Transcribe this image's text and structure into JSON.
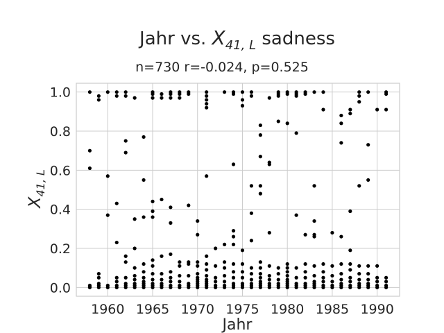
{
  "chart_data": {
    "type": "scatter",
    "title_prefix": "Jahr vs. ",
    "title_var": "X",
    "title_sub": "41, L",
    "title_suffix": " sadness",
    "subtitle": "n=730 r=-0.024, p=0.525",
    "xlabel": "Jahr",
    "ylabel_var": "X",
    "ylabel_sub": "41, L",
    "xlim": [
      1956.5,
      1992.5
    ],
    "ylim": [
      -0.045,
      1.045
    ],
    "xticks": [
      1960,
      1965,
      1970,
      1975,
      1980,
      1985,
      1990
    ],
    "yticks": [
      0.0,
      0.2,
      0.4,
      0.6,
      0.8,
      1.0
    ],
    "ytick_labels": [
      "0.0",
      "0.2",
      "0.4",
      "0.6",
      "0.8",
      "1.0"
    ],
    "grid": true,
    "marker_color": "#000000",
    "points": [
      [
        1958,
        1.0
      ],
      [
        1958,
        0.7
      ],
      [
        1958,
        0.61
      ],
      [
        1958,
        0.01
      ],
      [
        1958,
        0.005
      ],
      [
        1958,
        0.0
      ],
      [
        1959,
        0.98
      ],
      [
        1959,
        0.96
      ],
      [
        1959,
        0.07
      ],
      [
        1959,
        0.05
      ],
      [
        1959,
        0.02
      ],
      [
        1959,
        0.01
      ],
      [
        1959,
        0.0
      ],
      [
        1960,
        1.0
      ],
      [
        1960,
        0.57
      ],
      [
        1960,
        0.37
      ],
      [
        1960,
        0.01
      ],
      [
        1960,
        0.0
      ],
      [
        1961,
        1.0
      ],
      [
        1961,
        0.98
      ],
      [
        1961,
        0.43
      ],
      [
        1961,
        0.23
      ],
      [
        1961,
        0.05
      ],
      [
        1961,
        0.03
      ],
      [
        1961,
        0.01
      ],
      [
        1961,
        0.0
      ],
      [
        1962,
        1.0
      ],
      [
        1962,
        0.98
      ],
      [
        1962,
        0.75
      ],
      [
        1962,
        0.69
      ],
      [
        1962,
        0.16
      ],
      [
        1962,
        0.13
      ],
      [
        1962,
        0.05
      ],
      [
        1962,
        0.02
      ],
      [
        1962,
        0.01
      ],
      [
        1962,
        0.0
      ],
      [
        1963,
        0.97
      ],
      [
        1963,
        0.35
      ],
      [
        1963,
        0.2
      ],
      [
        1963,
        0.1
      ],
      [
        1963,
        0.06
      ],
      [
        1963,
        0.04
      ],
      [
        1963,
        0.02
      ],
      [
        1963,
        0.01
      ],
      [
        1963,
        0.0
      ],
      [
        1964,
        0.77
      ],
      [
        1964,
        0.55
      ],
      [
        1964,
        0.36
      ],
      [
        1964,
        0.12
      ],
      [
        1964,
        0.08
      ],
      [
        1964,
        0.05
      ],
      [
        1964,
        0.03
      ],
      [
        1964,
        0.02
      ],
      [
        1964,
        0.01
      ],
      [
        1964,
        0.0
      ],
      [
        1965,
        1.0
      ],
      [
        1965,
        0.99
      ],
      [
        1965,
        0.97
      ],
      [
        1965,
        0.44
      ],
      [
        1965,
        0.39
      ],
      [
        1965,
        0.36
      ],
      [
        1965,
        0.14
      ],
      [
        1965,
        0.11
      ],
      [
        1965,
        0.07
      ],
      [
        1965,
        0.04
      ],
      [
        1965,
        0.02
      ],
      [
        1965,
        0.01
      ],
      [
        1965,
        0.0
      ],
      [
        1966,
        0.99
      ],
      [
        1966,
        0.97
      ],
      [
        1966,
        0.45
      ],
      [
        1966,
        0.16
      ],
      [
        1966,
        0.07
      ],
      [
        1966,
        0.04
      ],
      [
        1966,
        0.02
      ],
      [
        1966,
        0.01
      ],
      [
        1966,
        0.0
      ],
      [
        1967,
        1.0
      ],
      [
        1967,
        0.99
      ],
      [
        1967,
        0.97
      ],
      [
        1967,
        0.41
      ],
      [
        1967,
        0.33
      ],
      [
        1967,
        0.17
      ],
      [
        1967,
        0.08
      ],
      [
        1967,
        0.05
      ],
      [
        1967,
        0.03
      ],
      [
        1967,
        0.01
      ],
      [
        1967,
        0.0
      ],
      [
        1968,
        1.0
      ],
      [
        1968,
        0.99
      ],
      [
        1968,
        0.97
      ],
      [
        1968,
        0.13
      ],
      [
        1968,
        0.11
      ],
      [
        1968,
        0.06
      ],
      [
        1968,
        0.03
      ],
      [
        1968,
        0.01
      ],
      [
        1968,
        0.0
      ],
      [
        1969,
        1.0
      ],
      [
        1969,
        0.99
      ],
      [
        1969,
        0.42
      ],
      [
        1969,
        0.13
      ],
      [
        1969,
        0.12
      ],
      [
        1969,
        0.06
      ],
      [
        1969,
        0.02
      ],
      [
        1969,
        0.01
      ],
      [
        1969,
        0.0
      ],
      [
        1970,
        0.34
      ],
      [
        1970,
        0.27
      ],
      [
        1970,
        0.13
      ],
      [
        1970,
        0.11
      ],
      [
        1970,
        0.07
      ],
      [
        1970,
        0.05
      ],
      [
        1970,
        0.04
      ],
      [
        1970,
        0.03
      ],
      [
        1970,
        0.02
      ],
      [
        1970,
        0.01
      ],
      [
        1970,
        0.0
      ],
      [
        1971,
        1.0
      ],
      [
        1971,
        0.98
      ],
      [
        1971,
        0.96
      ],
      [
        1971,
        0.94
      ],
      [
        1971,
        0.92
      ],
      [
        1971,
        0.57
      ],
      [
        1971,
        0.16
      ],
      [
        1971,
        0.12
      ],
      [
        1971,
        0.09
      ],
      [
        1971,
        0.06
      ],
      [
        1971,
        0.04
      ],
      [
        1971,
        0.03
      ],
      [
        1971,
        0.02
      ],
      [
        1971,
        0.01
      ],
      [
        1971,
        0.0
      ],
      [
        1972,
        0.2
      ],
      [
        1972,
        0.11
      ],
      [
        1972,
        0.05
      ],
      [
        1972,
        0.03
      ],
      [
        1972,
        0.01
      ],
      [
        1972,
        0.0
      ],
      [
        1973,
        1.0
      ],
      [
        1973,
        0.22
      ],
      [
        1973,
        0.13
      ],
      [
        1973,
        0.1
      ],
      [
        1973,
        0.06
      ],
      [
        1973,
        0.03
      ],
      [
        1973,
        0.01
      ],
      [
        1973,
        0.0
      ],
      [
        1974,
        1.0
      ],
      [
        1974,
        0.99
      ],
      [
        1974,
        0.63
      ],
      [
        1974,
        0.29
      ],
      [
        1974,
        0.26
      ],
      [
        1974,
        0.22
      ],
      [
        1974,
        0.12
      ],
      [
        1974,
        0.08
      ],
      [
        1974,
        0.05
      ],
      [
        1974,
        0.02
      ],
      [
        1974,
        0.01
      ],
      [
        1974,
        0.0
      ],
      [
        1975,
        1.0
      ],
      [
        1975,
        0.96
      ],
      [
        1975,
        0.93
      ],
      [
        1975,
        0.19
      ],
      [
        1975,
        0.12
      ],
      [
        1975,
        0.08
      ],
      [
        1975,
        0.05
      ],
      [
        1975,
        0.02
      ],
      [
        1975,
        0.01
      ],
      [
        1975,
        0.0
      ],
      [
        1976,
        1.0
      ],
      [
        1976,
        0.98
      ],
      [
        1976,
        0.52
      ],
      [
        1976,
        0.38
      ],
      [
        1976,
        0.24
      ],
      [
        1976,
        0.1
      ],
      [
        1976,
        0.07
      ],
      [
        1976,
        0.04
      ],
      [
        1976,
        0.02
      ],
      [
        1976,
        0.01
      ],
      [
        1976,
        0.0
      ],
      [
        1977,
        0.83
      ],
      [
        1977,
        0.78
      ],
      [
        1977,
        0.67
      ],
      [
        1977,
        0.52
      ],
      [
        1977,
        0.48
      ],
      [
        1977,
        0.13
      ],
      [
        1977,
        0.1
      ],
      [
        1977,
        0.07
      ],
      [
        1977,
        0.05
      ],
      [
        1977,
        0.03
      ],
      [
        1977,
        0.02
      ],
      [
        1977,
        0.01
      ],
      [
        1977,
        0.0
      ],
      [
        1978,
        0.97
      ],
      [
        1978,
        0.64
      ],
      [
        1978,
        0.63
      ],
      [
        1978,
        0.28
      ],
      [
        1978,
        0.11
      ],
      [
        1978,
        0.06
      ],
      [
        1978,
        0.04
      ],
      [
        1978,
        0.02
      ],
      [
        1978,
        0.01
      ],
      [
        1978,
        0.0
      ],
      [
        1979,
        1.0
      ],
      [
        1979,
        0.99
      ],
      [
        1979,
        0.98
      ],
      [
        1979,
        0.85
      ],
      [
        1979,
        0.1
      ],
      [
        1979,
        0.07
      ],
      [
        1979,
        0.04
      ],
      [
        1979,
        0.02
      ],
      [
        1979,
        0.01
      ],
      [
        1979,
        0.0
      ],
      [
        1980,
        1.0
      ],
      [
        1980,
        0.99
      ],
      [
        1980,
        0.84
      ],
      [
        1980,
        0.12
      ],
      [
        1980,
        0.1
      ],
      [
        1980,
        0.08
      ],
      [
        1980,
        0.06
      ],
      [
        1980,
        0.04
      ],
      [
        1980,
        0.03
      ],
      [
        1980,
        0.02
      ],
      [
        1980,
        0.01
      ],
      [
        1980,
        0.0
      ],
      [
        1981,
        1.0
      ],
      [
        1981,
        0.99
      ],
      [
        1981,
        0.98
      ],
      [
        1981,
        0.79
      ],
      [
        1981,
        0.37
      ],
      [
        1981,
        0.1
      ],
      [
        1981,
        0.05
      ],
      [
        1981,
        0.02
      ],
      [
        1981,
        0.01
      ],
      [
        1981,
        0.0
      ],
      [
        1982,
        1.0
      ],
      [
        1982,
        0.99
      ],
      [
        1982,
        0.27
      ],
      [
        1982,
        0.12
      ],
      [
        1982,
        0.08
      ],
      [
        1982,
        0.05
      ],
      [
        1982,
        0.02
      ],
      [
        1982,
        0.01
      ],
      [
        1982,
        0.0
      ],
      [
        1983,
        1.0
      ],
      [
        1983,
        0.52
      ],
      [
        1983,
        0.34
      ],
      [
        1983,
        0.27
      ],
      [
        1983,
        0.26
      ],
      [
        1983,
        0.11
      ],
      [
        1983,
        0.06
      ],
      [
        1983,
        0.03
      ],
      [
        1983,
        0.02
      ],
      [
        1983,
        0.01
      ],
      [
        1983,
        0.0
      ],
      [
        1984,
        1.0
      ],
      [
        1984,
        0.91
      ],
      [
        1984,
        0.12
      ],
      [
        1984,
        0.08
      ],
      [
        1984,
        0.05
      ],
      [
        1984,
        0.03
      ],
      [
        1984,
        0.01
      ],
      [
        1984,
        0.0
      ],
      [
        1985,
        0.28
      ],
      [
        1985,
        0.11
      ],
      [
        1985,
        0.06
      ],
      [
        1985,
        0.03
      ],
      [
        1985,
        0.01
      ],
      [
        1985,
        0.0
      ],
      [
        1986,
        0.88
      ],
      [
        1986,
        0.84
      ],
      [
        1986,
        0.74
      ],
      [
        1986,
        0.26
      ],
      [
        1986,
        0.12
      ],
      [
        1986,
        0.07
      ],
      [
        1986,
        0.04
      ],
      [
        1986,
        0.02
      ],
      [
        1986,
        0.01
      ],
      [
        1986,
        0.0
      ],
      [
        1987,
        0.91
      ],
      [
        1987,
        0.89
      ],
      [
        1987,
        0.39
      ],
      [
        1987,
        0.19
      ],
      [
        1987,
        0.12
      ],
      [
        1987,
        0.09
      ],
      [
        1987,
        0.05
      ],
      [
        1987,
        0.03
      ],
      [
        1987,
        0.01
      ],
      [
        1987,
        0.0
      ],
      [
        1988,
        1.0
      ],
      [
        1988,
        0.98
      ],
      [
        1988,
        0.95
      ],
      [
        1988,
        0.52
      ],
      [
        1988,
        0.11
      ],
      [
        1988,
        0.07
      ],
      [
        1988,
        0.04
      ],
      [
        1988,
        0.02
      ],
      [
        1988,
        0.01
      ],
      [
        1988,
        0.0
      ],
      [
        1989,
        1.0
      ],
      [
        1989,
        0.73
      ],
      [
        1989,
        0.55
      ],
      [
        1989,
        0.11
      ],
      [
        1989,
        0.07
      ],
      [
        1989,
        0.04
      ],
      [
        1989,
        0.02
      ],
      [
        1989,
        0.01
      ],
      [
        1989,
        0.0
      ],
      [
        1990,
        0.91
      ],
      [
        1990,
        0.11
      ],
      [
        1990,
        0.05
      ],
      [
        1990,
        0.03
      ],
      [
        1990,
        0.01
      ],
      [
        1990,
        0.0
      ],
      [
        1991,
        1.0
      ],
      [
        1991,
        0.99
      ],
      [
        1991,
        0.91
      ],
      [
        1991,
        0.05
      ],
      [
        1991,
        0.03
      ],
      [
        1991,
        0.01
      ],
      [
        1991,
        0.0
      ]
    ]
  }
}
